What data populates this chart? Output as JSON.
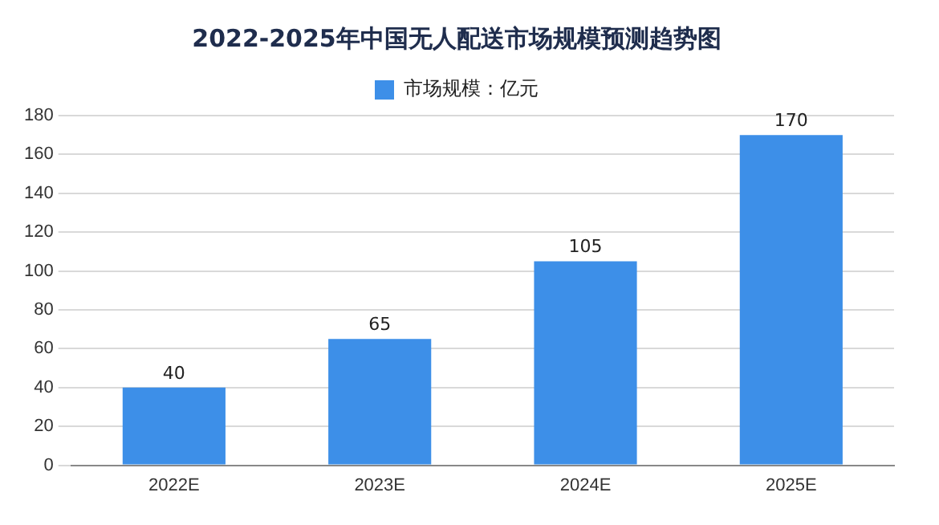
{
  "chart_data": {
    "type": "bar",
    "title": "2022-2025年中国无人配送市场规模预测趋势图",
    "categories": [
      "2022E",
      "2023E",
      "2024E",
      "2025E"
    ],
    "series": [
      {
        "name": "市场规模：亿元",
        "color": "#3d8fe8",
        "values": [
          40,
          65,
          105,
          170
        ]
      }
    ],
    "ylim": [
      0,
      180
    ],
    "yticks": [
      0,
      20,
      40,
      60,
      80,
      100,
      120,
      140,
      160,
      180
    ],
    "grid": "y",
    "legend": "top",
    "data_labels": true
  }
}
